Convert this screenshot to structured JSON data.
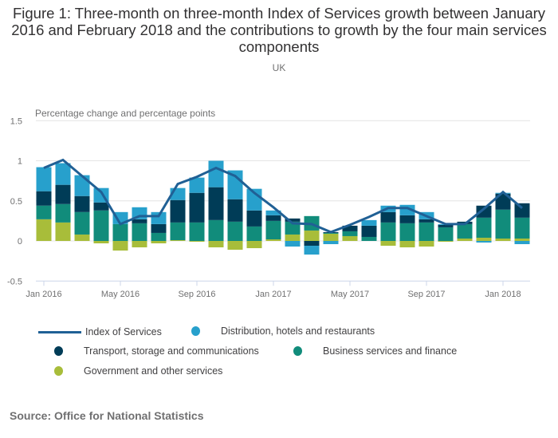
{
  "title": "Figure 1: Three-month on three-month Index of Services growth between January 2016 and February 2018 and the contributions to growth by the four main services components",
  "subtitle": "UK",
  "source": "Source: Office for National Statistics",
  "chart_data": {
    "type": "bar",
    "stacked": true,
    "title": "Figure 1: Three-month on three-month Index of Services growth between January 2016 and February 2018 and the contributions to growth by the four main services components",
    "subtitle": "UK",
    "ylabel": "Percentage change and percentage points",
    "xlabel": "",
    "ylim": [
      -0.5,
      1.5
    ],
    "yticks": [
      -0.5,
      0,
      0.5,
      1,
      1.5
    ],
    "ytick_labels": [
      "-0.5",
      "0",
      "0.5",
      "1",
      "1.5"
    ],
    "grid": true,
    "legend_position": "bottom",
    "categories": [
      "Jan 2016",
      "Feb 2016",
      "Mar 2016",
      "Apr 2016",
      "May 2016",
      "Jun 2016",
      "Jul 2016",
      "Aug 2016",
      "Sep 2016",
      "Oct 2016",
      "Nov 2016",
      "Dec 2016",
      "Jan 2017",
      "Feb 2017",
      "Mar 2017",
      "Apr 2017",
      "May 2017",
      "Jun 2017",
      "Jul 2017",
      "Aug 2017",
      "Sep 2017",
      "Oct 2017",
      "Nov 2017",
      "Dec 2017",
      "Jan 2018",
      "Feb 2018"
    ],
    "xtick_labels": [
      {
        "index": 0,
        "label": "Jan 2016"
      },
      {
        "index": 4,
        "label": "May 2016"
      },
      {
        "index": 8,
        "label": "Sep 2016"
      },
      {
        "index": 12,
        "label": "Jan 2017"
      },
      {
        "index": 16,
        "label": "May 2017"
      },
      {
        "index": 20,
        "label": "Sep 2017"
      },
      {
        "index": 24,
        "label": "Jan 2018"
      }
    ],
    "series": [
      {
        "name": "Government and other services",
        "type": "bar",
        "color": "#a8bd3a",
        "values": [
          0.27,
          0.23,
          0.08,
          -0.03,
          -0.12,
          -0.08,
          -0.03,
          0.01,
          -0.01,
          -0.08,
          -0.11,
          -0.09,
          0.02,
          0.08,
          0.13,
          0.09,
          0.06,
          0.0,
          -0.06,
          -0.08,
          -0.07,
          -0.01,
          0.03,
          0.04,
          0.03,
          0.03
        ]
      },
      {
        "name": "Business services and finance",
        "type": "bar",
        "color": "#118c7b",
        "values": [
          0.17,
          0.23,
          0.28,
          0.38,
          0.21,
          0.22,
          0.1,
          0.22,
          0.23,
          0.26,
          0.24,
          0.18,
          0.23,
          0.16,
          0.18,
          0.01,
          0.06,
          0.05,
          0.23,
          0.22,
          0.23,
          0.17,
          0.18,
          0.25,
          0.36,
          0.26
        ]
      },
      {
        "name": "Transport, storage and communications",
        "type": "bar",
        "color": "#003c57",
        "values": [
          0.18,
          0.24,
          0.2,
          0.1,
          0.0,
          0.05,
          0.11,
          0.28,
          0.37,
          0.41,
          0.28,
          0.2,
          0.07,
          0.04,
          -0.06,
          0.01,
          0.07,
          0.14,
          0.13,
          0.1,
          0.04,
          0.03,
          0.03,
          0.15,
          0.2,
          0.18
        ]
      },
      {
        "name": "Distribution, hotels and restaurants",
        "type": "bar",
        "color": "#27a0cc",
        "values": [
          0.3,
          0.27,
          0.26,
          0.18,
          0.15,
          0.15,
          0.15,
          0.15,
          0.19,
          0.33,
          0.36,
          0.27,
          0.06,
          -0.07,
          -0.11,
          -0.04,
          0.0,
          0.07,
          0.08,
          0.13,
          0.09,
          0.01,
          0.0,
          -0.02,
          0.01,
          -0.04
        ]
      },
      {
        "name": "Index of Services",
        "type": "line",
        "color": "#206095",
        "values": [
          0.91,
          1.01,
          0.81,
          0.61,
          0.21,
          0.31,
          0.31,
          0.71,
          0.8,
          0.91,
          0.81,
          0.6,
          0.42,
          0.22,
          0.21,
          0.11,
          0.2,
          0.3,
          0.41,
          0.41,
          0.31,
          0.21,
          0.21,
          0.4,
          0.61,
          0.41
        ]
      }
    ]
  },
  "legend": [
    {
      "label": "Index of Services",
      "kind": "line",
      "color": "#206095"
    },
    {
      "label": "Distribution, hotels and restaurants",
      "kind": "dot",
      "color": "#27a0cc"
    },
    {
      "label": "Transport, storage and communications",
      "kind": "dot",
      "color": "#003c57"
    },
    {
      "label": "Business services and finance",
      "kind": "dot",
      "color": "#118c7b"
    },
    {
      "label": "Government and other services",
      "kind": "dot",
      "color": "#a8bd3a"
    }
  ]
}
